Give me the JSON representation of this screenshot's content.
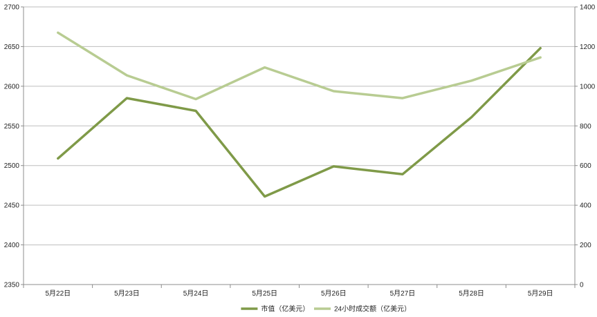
{
  "chart_data": {
    "type": "line",
    "title": "",
    "xlabel": "",
    "ylabel": "",
    "categories": [
      "5月22日",
      "5月23日",
      "5月24日",
      "5月25日",
      "5月26日",
      "5月27日",
      "5月28日",
      "5月29日"
    ],
    "y_left": {
      "min": 2350,
      "max": 2700,
      "step": 50
    },
    "y_right": {
      "min": 0,
      "max": 1400,
      "step": 200
    },
    "series": [
      {
        "name": "市值（亿美元）",
        "axis": "left",
        "color": "#7f9a48",
        "values": [
          2509,
          2585,
          2569,
          2461,
          2499,
          2489,
          2561,
          2648
        ]
      },
      {
        "name": "24小时成交额（亿美元）",
        "axis": "right",
        "color": "#b8cc92",
        "values": [
          1270,
          1055,
          935,
          1095,
          975,
          940,
          1028,
          1145
        ]
      }
    ],
    "grid": true,
    "legend": "bottom"
  }
}
